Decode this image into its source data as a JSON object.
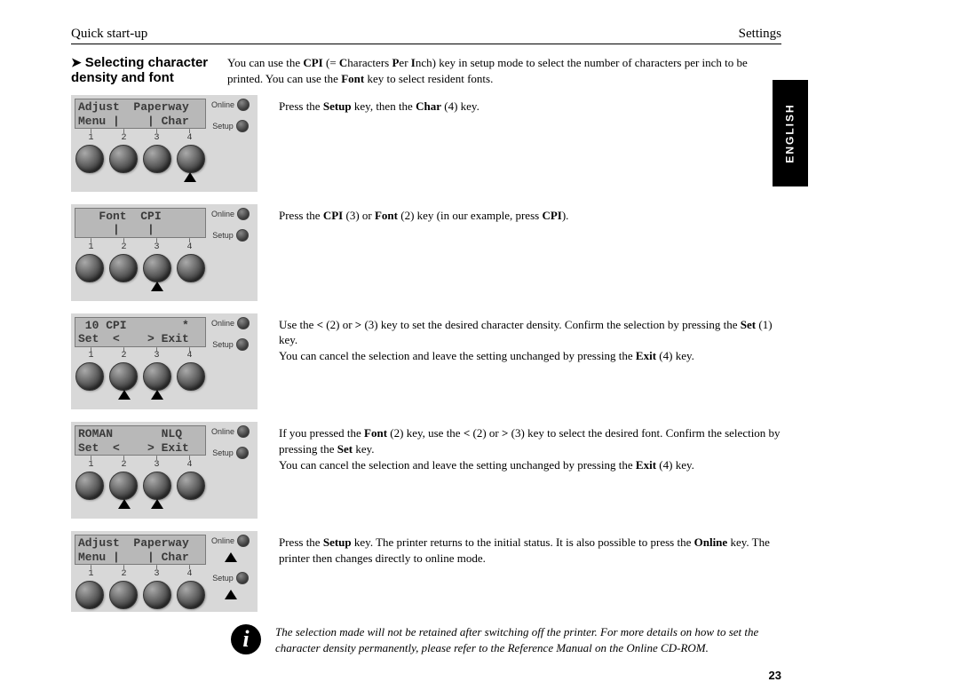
{
  "header": {
    "left": "Quick start-up",
    "right": "Settings"
  },
  "language_tab": "ENGLISH",
  "section_heading": "Selecting character density and font",
  "intro_html": "You can use the <b>CPI</b> (= <b>C</b>haracters <b>P</b>er <b>I</b>nch) key in setup mode to select the number of characters per inch to be printed. You can use the <b>Font</b> key to select resident fonts.",
  "panel_side": {
    "online": "Online",
    "setup": "Setup"
  },
  "panels": [
    {
      "line1": "Adjust  Paperway",
      "line2": "Menu |    | Char",
      "main_arrows": [
        false,
        false,
        false,
        true
      ],
      "side_arrows": [
        false,
        false
      ]
    },
    {
      "line1": "   Font  CPI    ",
      "line2": "     |    |     ",
      "main_arrows": [
        false,
        false,
        true,
        false
      ],
      "side_arrows": [
        false,
        false
      ]
    },
    {
      "line1": " 10 CPI        *",
      "line2": "Set  <    > Exit",
      "main_arrows": [
        false,
        true,
        true,
        false
      ],
      "side_arrows": [
        false,
        false
      ]
    },
    {
      "line1": "ROMAN       NLQ ",
      "line2": "Set  <    > Exit",
      "main_arrows": [
        false,
        true,
        true,
        false
      ],
      "side_arrows": [
        false,
        false
      ]
    },
    {
      "line1": "Adjust  Paperway",
      "line2": "Menu |    | Char",
      "main_arrows": [
        false,
        false,
        false,
        false
      ],
      "side_arrows": [
        true,
        true
      ]
    }
  ],
  "steps_html": [
    "Press the <b>Setup</b> key, then the <b>Char</b> (4) key.",
    "Press the <b>CPI</b> (3) or <b>Font</b> (2) key (in our example, press <b>CPI</b>).",
    "Use the <b>&lt;</b> (2) or <b>&gt;</b> (3) key to set the desired character density. Confirm the selection by pressing the <b>Set</b> (1) key.<br>You can cancel the selection and leave the setting unchanged by pressing the <b>Exit</b> (4) key.",
    "If you pressed the <b>Font</b> (2) key, use the <b>&lt;</b> (2) or <b>&gt;</b> (3) key to select the desired font. Confirm the selection by pressing the <b>Set</b> key.<br>You can cancel the selection and leave the setting unchanged by pressing the <b>Exit</b> (4) key.",
    "Press the <b>Setup</b> key. The printer returns to the initial status. It is also possible to press the <b>Online</b> key. The printer then changes directly to online mode."
  ],
  "info_note_html": "The selection made will not be retained after switching off the printer. For more details on how to set the character density permanently, please refer to the Reference Manual on the Online CD-ROM.",
  "page_number": "23",
  "button_numbers": [
    "1",
    "2",
    "3",
    "4"
  ]
}
